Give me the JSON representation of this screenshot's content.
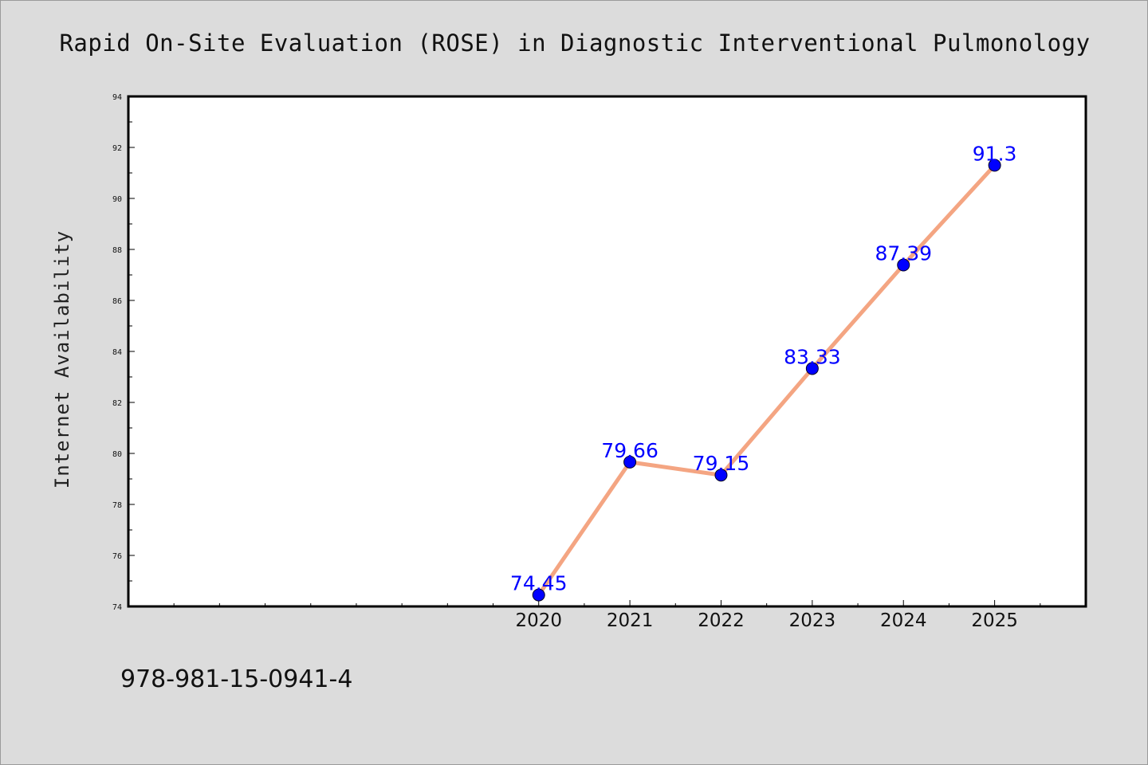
{
  "chart_data": {
    "type": "line",
    "title": "Rapid On-Site Evaluation (ROSE) in Diagnostic Interventional Pulmonology",
    "xlabel": "",
    "ylabel": "Internet Availability",
    "x": [
      2020,
      2021,
      2022,
      2023,
      2024,
      2025
    ],
    "xlim": [
      2015.5,
      2026.0
    ],
    "ylim": [
      74,
      94
    ],
    "yticks": [
      74,
      76,
      78,
      80,
      82,
      84,
      86,
      88,
      90,
      92,
      94
    ],
    "series": [
      {
        "values": [
          74.45,
          79.66,
          79.15,
          83.33,
          87.39,
          91.3
        ],
        "labels": [
          "74.45",
          "79.66",
          "79.15",
          "83.33",
          "87.39",
          "91.3"
        ],
        "line_color": "#f4a582",
        "marker_color": "#0000ff"
      }
    ],
    "grid": false,
    "legend": "none",
    "data_label_color": "#0000ff"
  },
  "footer": {
    "isbn": "978-981-15-0941-4"
  }
}
